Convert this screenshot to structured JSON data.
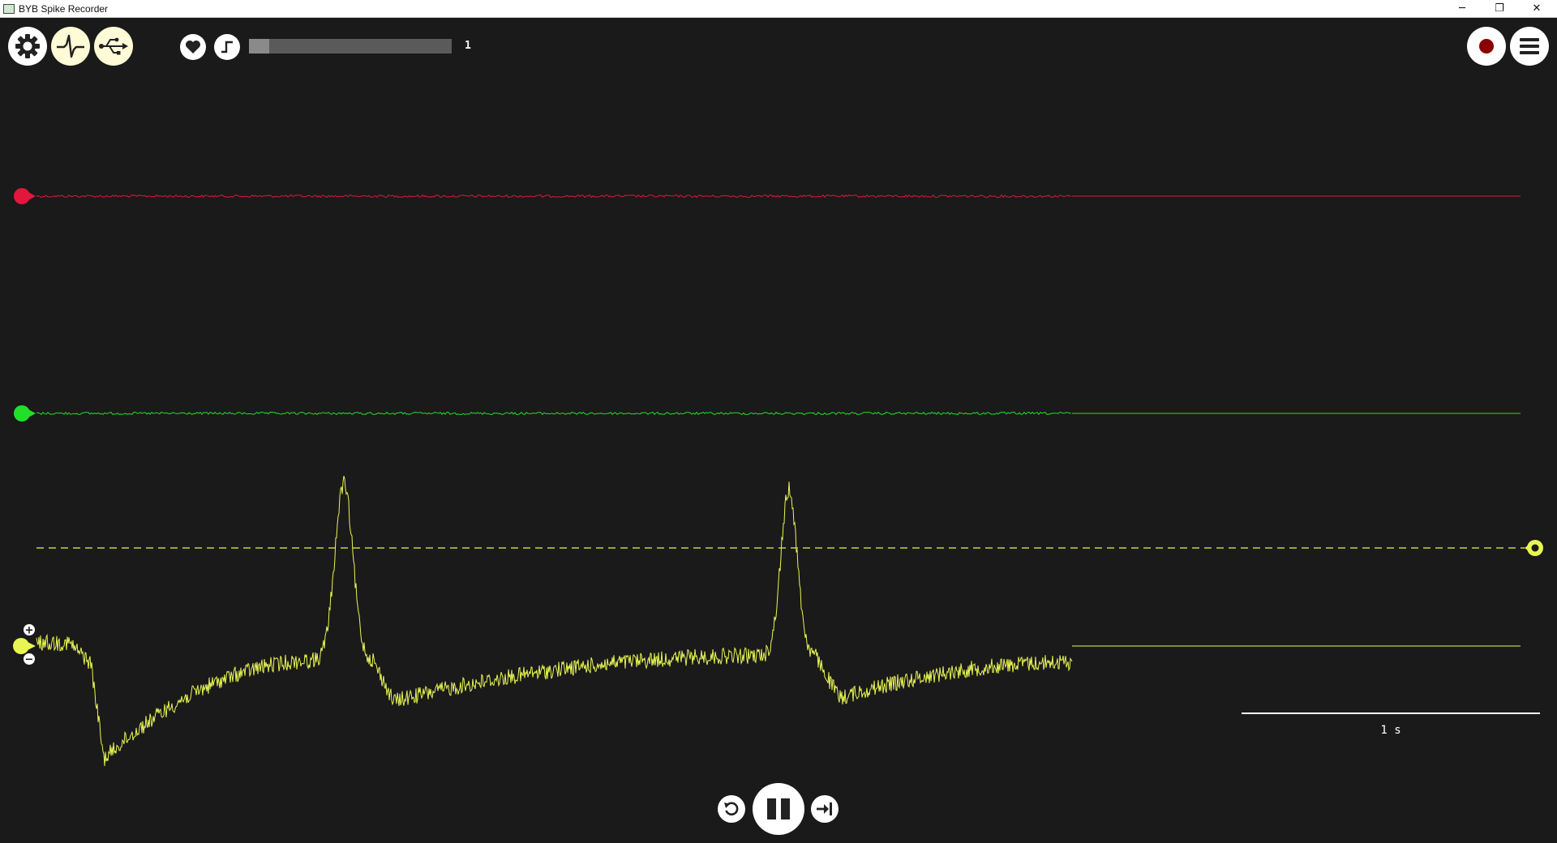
{
  "window": {
    "title": "BYB Spike Recorder",
    "minimize": "─",
    "restore": "❐",
    "close": "✕"
  },
  "toolbar": {
    "left_buttons": [
      "settings-icon",
      "spike-analysis-icon",
      "usb-connection-icon"
    ],
    "heart_button": "heart-icon",
    "threshold_button": "threshold-step-icon",
    "counter_value": "1",
    "progress_fraction": 0.1,
    "right_buttons": [
      "record-icon",
      "menu-icon"
    ]
  },
  "channels": [
    {
      "name": "channel-1",
      "color": "#e3163c"
    },
    {
      "name": "channel-2",
      "color": "#22e02a"
    },
    {
      "name": "channel-3",
      "color": "#e8f553",
      "threshold_color": "#e8f553"
    }
  ],
  "gain_controls": {
    "plus": "+",
    "minus": "−"
  },
  "timescale": {
    "label": "1 s"
  },
  "playback": {
    "rewind": "rewind-icon",
    "pause": "pause-icon",
    "forward": "jump-to-end-icon"
  },
  "colors": {
    "background": "#1a1a1a",
    "record": "#8b0000"
  }
}
